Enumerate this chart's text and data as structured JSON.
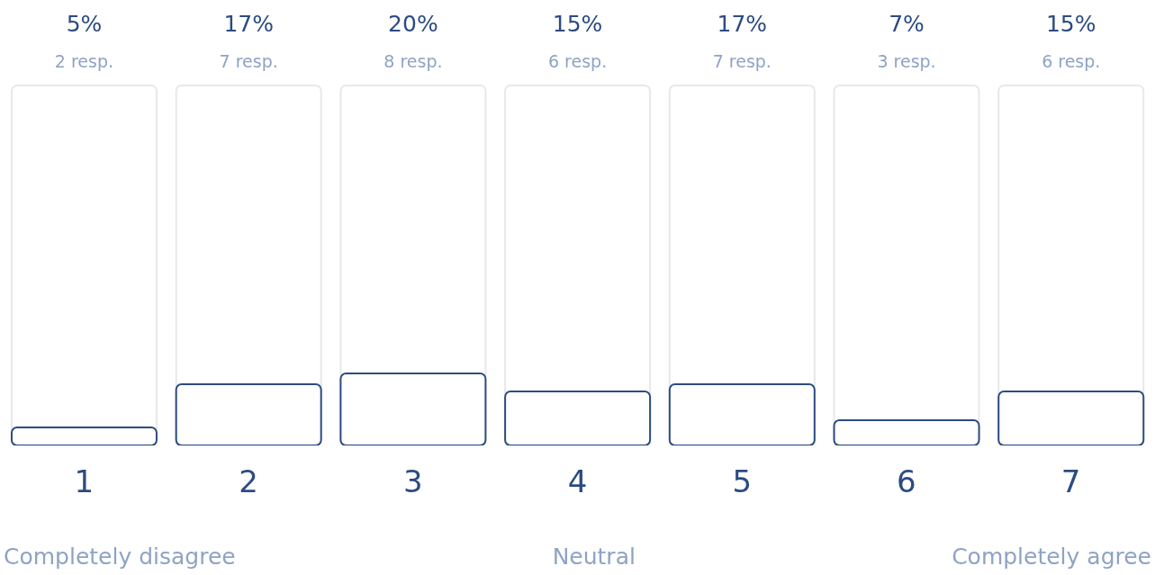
{
  "chart_data": {
    "type": "bar",
    "categories": [
      "1",
      "2",
      "3",
      "4",
      "5",
      "6",
      "7"
    ],
    "values": [
      5,
      17,
      20,
      15,
      17,
      7,
      15
    ],
    "value_labels": [
      "5%\n2 resp.",
      "17%\n7 resp.",
      "20%\n8 resp.",
      "15%\n6 resp.",
      "17%\n7 resp.",
      "7%\n3 resp.",
      "15%\n6 resp."
    ],
    "color": "#2c4b82",
    "ylim": [
      0,
      100
    ],
    "grid": false,
    "legend": false,
    "annotations": [
      "Completely disagree",
      "Neutral",
      "Completely agree"
    ]
  }
}
